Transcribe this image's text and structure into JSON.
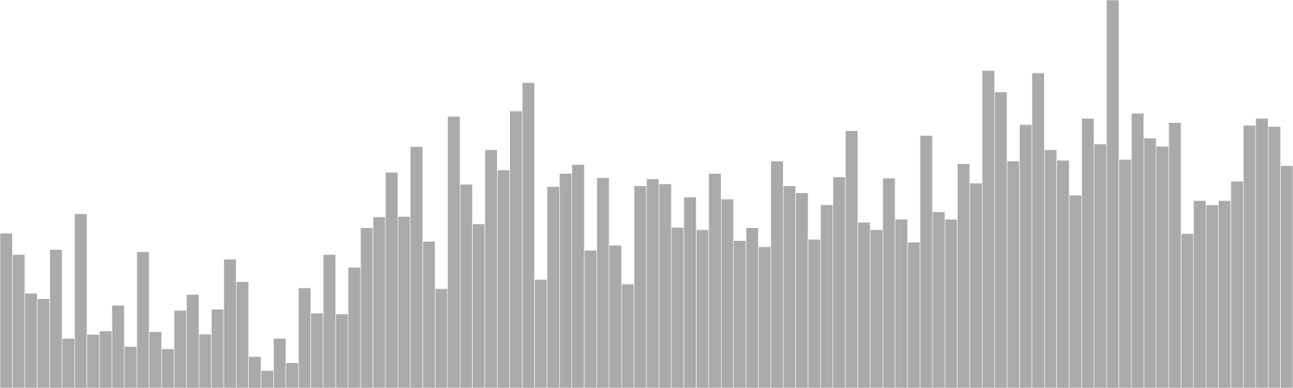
{
  "chart_data": {
    "type": "bar",
    "title": "",
    "xlabel": "",
    "ylabel": "",
    "ylim": [
      0,
      100
    ],
    "grid": false,
    "legend": "none",
    "colors": {
      "bar_fill": "#aaaaaa",
      "bar_edge": "#ffffff",
      "background": "#ffffff"
    },
    "values": [
      39.9,
      34.4,
      24.4,
      23.0,
      35.7,
      12.8,
      44.9,
      13.8,
      14.7,
      21.3,
      10.7,
      35.1,
      14.5,
      10.1,
      20.0,
      24.1,
      13.9,
      20.3,
      33.2,
      27.4,
      8.1,
      4.5,
      12.8,
      6.5,
      25.8,
      19.3,
      34.4,
      19.1,
      31.1,
      41.3,
      44.1,
      55.6,
      44.2,
      62.2,
      37.8,
      25.6,
      70.0,
      52.5,
      42.3,
      61.4,
      56.2,
      71.4,
      78.7,
      28.0,
      51.9,
      55.3,
      57.6,
      35.5,
      54.2,
      36.8,
      26.8,
      52.1,
      53.9,
      52.6,
      41.4,
      49.2,
      40.8,
      55.3,
      48.7,
      38.0,
      41.3,
      36.4,
      58.5,
      52.1,
      50.3,
      38.3,
      47.2,
      54.4,
      66.3,
      42.7,
      40.8,
      54.1,
      43.5,
      37.6,
      65.1,
      45.4,
      43.5,
      57.8,
      52.8,
      81.8,
      76.3,
      58.5,
      67.9,
      81.2,
      61.4,
      58.7,
      49.7,
      69.5,
      62.9,
      100.0,
      58.9,
      70.8,
      64.4,
      62.3,
      68.4,
      39.8,
      48.3,
      47.2,
      48.3,
      53.3,
      67.7,
      69.5,
      67.4,
      57.3
    ]
  }
}
